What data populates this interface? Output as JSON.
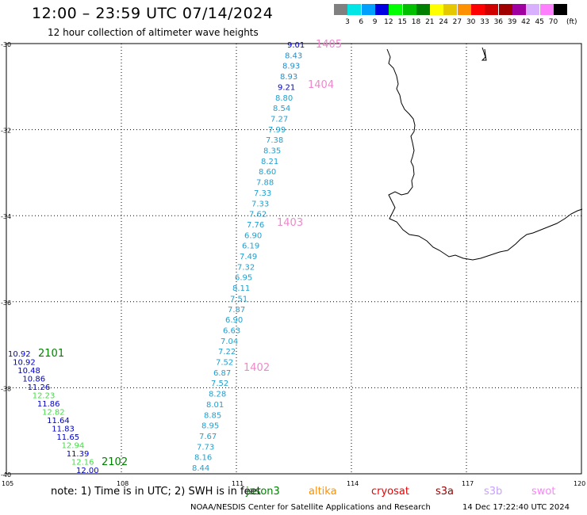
{
  "header": {
    "title": "12:00 – 23:59 UTC 07/14/2024",
    "subtitle": "12 hour collection of altimeter wave heights"
  },
  "color_scale": {
    "unit": "(ft)",
    "bins": [
      {
        "label": "3",
        "color": "#808080"
      },
      {
        "label": "6",
        "color": "#00e6e6"
      },
      {
        "label": "9",
        "color": "#00a0ff"
      },
      {
        "label": "12",
        "color": "#0000e0"
      },
      {
        "label": "15",
        "color": "#00ff00"
      },
      {
        "label": "18",
        "color": "#00c000"
      },
      {
        "label": "21",
        "color": "#008000"
      },
      {
        "label": "24",
        "color": "#ffff00"
      },
      {
        "label": "27",
        "color": "#e6c800"
      },
      {
        "label": "30",
        "color": "#ff9000"
      },
      {
        "label": "33",
        "color": "#ff0000"
      },
      {
        "label": "36",
        "color": "#d00000"
      },
      {
        "label": "39",
        "color": "#a00000"
      },
      {
        "label": "42",
        "color": "#a000a0"
      },
      {
        "label": "45",
        "color": "#d8b0ff"
      },
      {
        "label": "70",
        "color": "#ff80ff"
      },
      {
        "label": "",
        "color": "#000000"
      }
    ]
  },
  "map": {
    "lon_range": [
      105,
      120
    ],
    "lat_range": [
      -40,
      -30
    ],
    "lat_ticks": [
      "-30",
      "-32",
      "-34",
      "-36",
      "-38",
      "-40"
    ],
    "lon_ticks": [
      "105",
      "108",
      "111",
      "114",
      "117",
      "120"
    ]
  },
  "tracks": [
    {
      "pass_labels": [
        {
          "text": "1405",
          "color": "#ee88cc"
        },
        {
          "text": "1404",
          "color": "#ee88cc"
        },
        {
          "text": "1403",
          "color": "#ee88cc"
        },
        {
          "text": "1402",
          "color": "#ee88cc"
        }
      ],
      "points": [
        {
          "v": "9.01",
          "c": "#0000c0"
        },
        {
          "v": "8.43",
          "c": "#2090d0"
        },
        {
          "v": "8.93",
          "c": "#2090d0"
        },
        {
          "v": "8.93",
          "c": "#2090d0"
        },
        {
          "v": "9.21",
          "c": "#0000c0"
        },
        {
          "v": "8.80",
          "c": "#20a0d0"
        },
        {
          "v": "8.54",
          "c": "#20a0d0"
        },
        {
          "v": "7.27",
          "c": "#20a0d0"
        },
        {
          "v": "7.99",
          "c": "#20a0d0"
        },
        {
          "v": "7.38",
          "c": "#20a0d0"
        },
        {
          "v": "8.35",
          "c": "#20a0d0"
        },
        {
          "v": "8.21",
          "c": "#20a0d0"
        },
        {
          "v": "8.60",
          "c": "#20a0d0"
        },
        {
          "v": "7.88",
          "c": "#20a0d0"
        },
        {
          "v": "7.33",
          "c": "#20a0d0"
        },
        {
          "v": "7.33",
          "c": "#20a0d0"
        },
        {
          "v": "7.62",
          "c": "#20a0d0"
        },
        {
          "v": "7.76",
          "c": "#20a0d0"
        },
        {
          "v": "6.90",
          "c": "#20a0d0"
        },
        {
          "v": "6.19",
          "c": "#20a0d0"
        },
        {
          "v": "7.49",
          "c": "#20a0d0"
        },
        {
          "v": "7.32",
          "c": "#20a0d0"
        },
        {
          "v": "6.95",
          "c": "#20a0d0"
        },
        {
          "v": "8.11",
          "c": "#20a0d0"
        },
        {
          "v": "7.51",
          "c": "#20a0d0"
        },
        {
          "v": "7.87",
          "c": "#20a0d0"
        },
        {
          "v": "6.90",
          "c": "#20a0d0"
        },
        {
          "v": "6.63",
          "c": "#20a0d0"
        },
        {
          "v": "7.04",
          "c": "#20a0d0"
        },
        {
          "v": "7.22",
          "c": "#20a0d0"
        },
        {
          "v": "7.52",
          "c": "#20a0d0"
        },
        {
          "v": "6.87",
          "c": "#20a0d0"
        },
        {
          "v": "7.52",
          "c": "#20a0d0"
        },
        {
          "v": "8.28",
          "c": "#20a0d0"
        },
        {
          "v": "8.01",
          "c": "#20a0d0"
        },
        {
          "v": "8.85",
          "c": "#20a0d0"
        },
        {
          "v": "8.95",
          "c": "#20a0d0"
        },
        {
          "v": "7.67",
          "c": "#20a0d0"
        },
        {
          "v": "7.73",
          "c": "#20a0d0"
        },
        {
          "v": "8.16",
          "c": "#20a0d0"
        },
        {
          "v": "8.44",
          "c": "#20a0d0"
        }
      ]
    },
    {
      "pass_labels": [
        {
          "text": "2101",
          "color": "#008000"
        },
        {
          "text": "2102",
          "color": "#008000"
        }
      ],
      "points": [
        {
          "v": "10.92",
          "c": "#0000c0"
        },
        {
          "v": "10.92",
          "c": "#0000c0"
        },
        {
          "v": "10.48",
          "c": "#0000c0"
        },
        {
          "v": "10.86",
          "c": "#0000c0"
        },
        {
          "v": "11.26",
          "c": "#0000c0"
        },
        {
          "v": "12.23",
          "c": "#44dd44"
        },
        {
          "v": "11.86",
          "c": "#0000c0"
        },
        {
          "v": "12.82",
          "c": "#44dd44"
        },
        {
          "v": "11.64",
          "c": "#0000c0"
        },
        {
          "v": "11.83",
          "c": "#0000c0"
        },
        {
          "v": "11.65",
          "c": "#0000c0"
        },
        {
          "v": "12.94",
          "c": "#44dd44"
        },
        {
          "v": "11.39",
          "c": "#0000c0"
        },
        {
          "v": "12.16",
          "c": "#44dd44"
        },
        {
          "v": "12.00",
          "c": "#0000c0"
        }
      ]
    }
  ],
  "footer": {
    "note": "note:  1) Time is in UTC; 2) SWH is in feet",
    "missions": [
      {
        "name": "jason3",
        "color": "#008000"
      },
      {
        "name": "altika",
        "color": "#ff9000"
      },
      {
        "name": "cryosat",
        "color": "#ee0000"
      },
      {
        "name": "s3a",
        "color": "#a00000"
      },
      {
        "name": "s3b",
        "color": "#c8a0ff"
      },
      {
        "name": "swot",
        "color": "#ff80ff"
      }
    ],
    "credit": "NOAA/NESDIS Center for Satellite Applications and Research",
    "generated": "14 Dec 17:22:40 UTC 2024"
  }
}
